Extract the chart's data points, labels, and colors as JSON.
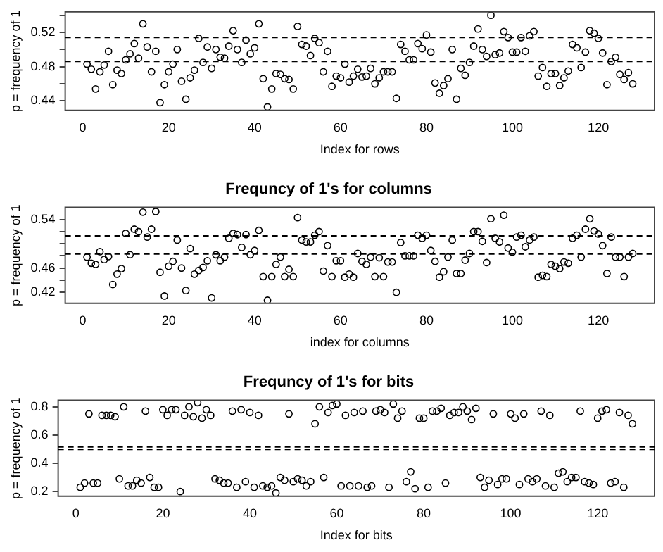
{
  "chart_data": [
    {
      "type": "scatter",
      "xlabel": "Index for rows",
      "ylabel": "p = frequency of 1",
      "marker": "circle",
      "x": [
        1,
        2,
        3,
        4,
        5,
        6,
        7,
        8,
        9,
        10,
        11,
        12,
        13,
        14,
        15,
        16,
        17,
        18,
        19,
        20,
        21,
        22,
        23,
        24,
        25,
        26,
        27,
        28,
        29,
        30,
        31,
        32,
        33,
        34,
        35,
        36,
        37,
        38,
        39,
        40,
        41,
        42,
        43,
        44,
        45,
        46,
        47,
        48,
        49,
        50,
        51,
        52,
        53,
        54,
        55,
        56,
        57,
        58,
        59,
        60,
        61,
        62,
        63,
        64,
        65,
        66,
        67,
        68,
        69,
        70,
        71,
        72,
        73,
        74,
        75,
        76,
        77,
        78,
        79,
        80,
        81,
        82,
        83,
        84,
        85,
        86,
        87,
        88,
        89,
        90,
        91,
        92,
        93,
        94,
        95,
        96,
        97,
        98,
        99,
        100,
        101,
        102,
        103,
        104,
        105,
        106,
        107,
        108,
        109,
        110,
        111,
        112,
        113,
        114,
        115,
        116,
        117,
        118,
        119,
        120,
        121,
        122,
        123,
        124,
        125,
        126,
        127,
        128
      ],
      "series": [
        {
          "color": "#000000",
          "values": [
            0.483,
            0.477,
            0.454,
            0.474,
            0.482,
            0.498,
            0.459,
            0.476,
            0.472,
            0.488,
            0.495,
            0.507,
            0.49,
            0.53,
            0.503,
            0.474,
            0.498,
            0.438,
            0.459,
            0.474,
            0.483,
            0.5,
            0.463,
            0.442,
            0.467,
            0.476,
            0.513,
            0.485,
            0.503,
            0.478,
            0.5,
            0.491,
            0.49,
            0.504,
            0.522,
            0.5,
            0.485,
            0.511,
            0.495,
            0.502,
            0.53,
            0.466,
            0.433,
            0.454,
            0.472,
            0.471,
            0.466,
            0.465,
            0.454,
            0.527,
            0.506,
            0.504,
            0.493,
            0.513,
            0.508,
            0.474,
            0.498,
            0.457,
            0.469,
            0.467,
            0.483,
            0.462,
            0.469,
            0.477,
            0.468,
            0.469,
            0.478,
            0.46,
            0.467,
            0.474,
            0.474,
            0.474,
            0.443,
            0.506,
            0.498,
            0.488,
            0.488,
            0.507,
            0.501,
            0.517,
            0.497,
            0.461,
            0.449,
            0.458,
            0.466,
            0.5,
            0.442,
            0.478,
            0.47,
            0.485,
            0.504,
            0.524,
            0.5,
            0.492,
            0.54,
            0.494,
            0.496,
            0.521,
            0.514,
            0.497,
            0.497,
            0.514,
            0.498,
            0.516,
            0.521,
            0.469,
            0.479,
            0.457,
            0.472,
            0.472,
            0.458,
            0.467,
            0.475,
            0.506,
            0.502,
            0.479,
            0.497,
            0.522,
            0.519,
            0.513,
            0.496,
            0.459,
            0.486,
            0.491,
            0.471,
            0.465,
            0.473,
            0.46
          ]
        }
      ],
      "xlim": [
        -4.08,
        133.08
      ],
      "ylim": [
        0.429,
        0.544
      ],
      "xticks": [
        0,
        20,
        40,
        60,
        80,
        100,
        120
      ],
      "yticks": [
        0.44,
        {
          "value": 0.46,
          "label": null
        },
        0.48,
        {
          "value": 0.5,
          "label": null
        },
        0.52,
        {
          "value": 0.54,
          "label": null
        }
      ],
      "ref_lines": [
        {
          "axis": "y",
          "value": 0.514,
          "line_style": "dashed"
        },
        {
          "axis": "y",
          "value": 0.486,
          "line_style": "dashed"
        }
      ]
    },
    {
      "type": "scatter",
      "title": "Frequncy of 1's for columns",
      "xlabel": "index for columns",
      "ylabel": "p = frequency of 1",
      "marker": "circle",
      "x": [
        1,
        2,
        3,
        4,
        5,
        6,
        7,
        8,
        9,
        10,
        11,
        12,
        13,
        14,
        15,
        16,
        17,
        18,
        19,
        20,
        21,
        22,
        23,
        24,
        25,
        26,
        27,
        28,
        29,
        30,
        31,
        32,
        33,
        34,
        35,
        36,
        37,
        38,
        39,
        40,
        41,
        42,
        43,
        44,
        45,
        46,
        47,
        48,
        49,
        50,
        51,
        52,
        53,
        54,
        55,
        56,
        57,
        58,
        59,
        60,
        61,
        62,
        63,
        64,
        65,
        66,
        67,
        68,
        69,
        70,
        71,
        72,
        73,
        74,
        75,
        76,
        77,
        78,
        79,
        80,
        81,
        82,
        83,
        84,
        85,
        86,
        87,
        88,
        89,
        90,
        91,
        92,
        93,
        94,
        95,
        96,
        97,
        98,
        99,
        100,
        101,
        102,
        103,
        104,
        105,
        106,
        107,
        108,
        109,
        110,
        111,
        112,
        113,
        114,
        115,
        116,
        117,
        118,
        119,
        120,
        121,
        122,
        123,
        124,
        125,
        126,
        127,
        128
      ],
      "series": [
        {
          "color": "#000000",
          "values": [
            0.478,
            0.468,
            0.466,
            0.487,
            0.474,
            0.479,
            0.433,
            0.45,
            0.459,
            0.517,
            0.482,
            0.524,
            0.52,
            0.552,
            0.511,
            0.524,
            0.553,
            0.453,
            0.414,
            0.463,
            0.471,
            0.506,
            0.46,
            0.423,
            0.492,
            0.45,
            0.456,
            0.461,
            0.472,
            0.411,
            0.482,
            0.472,
            0.478,
            0.509,
            0.517,
            0.515,
            0.494,
            0.515,
            0.482,
            0.489,
            0.522,
            0.446,
            0.407,
            0.446,
            0.466,
            0.478,
            0.446,
            0.458,
            0.446,
            0.543,
            0.506,
            0.503,
            0.503,
            0.514,
            0.52,
            0.455,
            0.497,
            0.446,
            0.472,
            0.472,
            0.445,
            0.45,
            0.445,
            0.484,
            0.471,
            0.466,
            0.478,
            0.446,
            0.477,
            0.446,
            0.47,
            0.47,
            0.42,
            0.502,
            0.48,
            0.48,
            0.48,
            0.514,
            0.509,
            0.514,
            0.489,
            0.471,
            0.445,
            0.454,
            0.478,
            0.506,
            0.451,
            0.451,
            0.473,
            0.484,
            0.52,
            0.52,
            0.504,
            0.469,
            0.541,
            0.509,
            0.503,
            0.547,
            0.493,
            0.486,
            0.511,
            0.514,
            0.495,
            0.506,
            0.511,
            0.445,
            0.448,
            0.446,
            0.466,
            0.463,
            0.459,
            0.47,
            0.468,
            0.509,
            0.514,
            0.478,
            0.524,
            0.541,
            0.521,
            0.516,
            0.497,
            0.451,
            0.511,
            0.478,
            0.478,
            0.446,
            0.478,
            0.484
          ]
        }
      ],
      "xlim": [
        -4.08,
        133.08
      ],
      "ylim": [
        0.402,
        0.56
      ],
      "xticks": [
        0,
        20,
        40,
        60,
        80,
        100,
        120
      ],
      "yticks": [
        0.42,
        {
          "value": 0.44,
          "label": null
        },
        0.46,
        {
          "value": 0.48,
          "label": null
        },
        {
          "value": 0.5,
          "label": null
        },
        {
          "value": 0.52,
          "label": null
        },
        0.54
      ],
      "ref_lines": [
        {
          "axis": "y",
          "value": 0.513,
          "line_style": "dashed"
        },
        {
          "axis": "y",
          "value": 0.483,
          "line_style": "dashed"
        }
      ]
    },
    {
      "type": "scatter",
      "title": "Frequncy of 1's for bits",
      "xlabel": "Index for bits",
      "ylabel": "p = frequency of 1",
      "marker": "circle",
      "x": [
        1,
        2,
        3,
        4,
        5,
        6,
        7,
        8,
        9,
        10,
        11,
        12,
        13,
        14,
        15,
        16,
        17,
        18,
        19,
        20,
        21,
        22,
        23,
        24,
        25,
        26,
        27,
        28,
        29,
        30,
        31,
        32,
        33,
        34,
        35,
        36,
        37,
        38,
        39,
        40,
        41,
        42,
        43,
        44,
        45,
        46,
        47,
        48,
        49,
        50,
        51,
        52,
        53,
        54,
        55,
        56,
        57,
        58,
        59,
        60,
        61,
        62,
        63,
        64,
        65,
        66,
        67,
        68,
        69,
        70,
        71,
        72,
        73,
        74,
        75,
        76,
        77,
        78,
        79,
        80,
        81,
        82,
        83,
        84,
        85,
        86,
        87,
        88,
        89,
        90,
        91,
        92,
        93,
        94,
        95,
        96,
        97,
        98,
        99,
        100,
        101,
        102,
        103,
        104,
        105,
        106,
        107,
        108,
        109,
        110,
        111,
        112,
        113,
        114,
        115,
        116,
        117,
        118,
        119,
        120,
        121,
        122,
        123,
        124,
        125,
        126,
        127,
        128
      ],
      "series": [
        {
          "color": "#000000",
          "values": [
            0.23,
            0.26,
            0.75,
            0.26,
            0.26,
            0.74,
            0.74,
            0.74,
            0.73,
            0.29,
            0.8,
            0.24,
            0.24,
            0.28,
            0.26,
            0.77,
            0.3,
            0.23,
            0.23,
            0.78,
            0.74,
            0.78,
            0.78,
            0.2,
            0.74,
            0.8,
            0.73,
            0.83,
            0.72,
            0.78,
            0.74,
            0.29,
            0.28,
            0.26,
            0.26,
            0.77,
            0.23,
            0.78,
            0.27,
            0.76,
            0.23,
            0.74,
            0.24,
            0.23,
            0.24,
            0.19,
            0.3,
            0.28,
            0.75,
            0.27,
            0.29,
            0.28,
            0.24,
            0.27,
            0.68,
            0.8,
            0.3,
            0.76,
            0.81,
            0.82,
            0.24,
            0.74,
            0.24,
            0.76,
            0.24,
            0.77,
            0.23,
            0.24,
            0.77,
            0.78,
            0.76,
            0.23,
            0.82,
            0.72,
            0.77,
            0.27,
            0.34,
            0.22,
            0.72,
            0.72,
            0.23,
            0.77,
            0.77,
            0.79,
            0.26,
            0.74,
            0.76,
            0.76,
            0.8,
            0.77,
            0.71,
            0.79,
            0.3,
            0.23,
            0.28,
            0.75,
            0.25,
            0.29,
            0.29,
            0.75,
            0.72,
            0.25,
            0.75,
            0.29,
            0.27,
            0.29,
            0.77,
            0.24,
            0.74,
            0.23,
            0.33,
            0.34,
            0.27,
            0.3,
            0.3,
            0.77,
            0.27,
            0.26,
            0.25,
            0.72,
            0.77,
            0.78,
            0.26,
            0.27,
            0.76,
            0.23,
            0.74,
            0.68
          ]
        }
      ],
      "xlim": [
        -4.08,
        133.08
      ],
      "ylim": [
        0.167,
        0.847
      ],
      "xticks": [
        0,
        20,
        40,
        60,
        80,
        100,
        120
      ],
      "yticks": [
        0.2,
        0.4,
        0.6,
        0.8
      ],
      "ref_lines": [
        {
          "axis": "y",
          "value": 0.516,
          "line_style": "dashed"
        },
        {
          "axis": "y",
          "value": 0.498,
          "line_style": "dashed"
        }
      ]
    }
  ]
}
